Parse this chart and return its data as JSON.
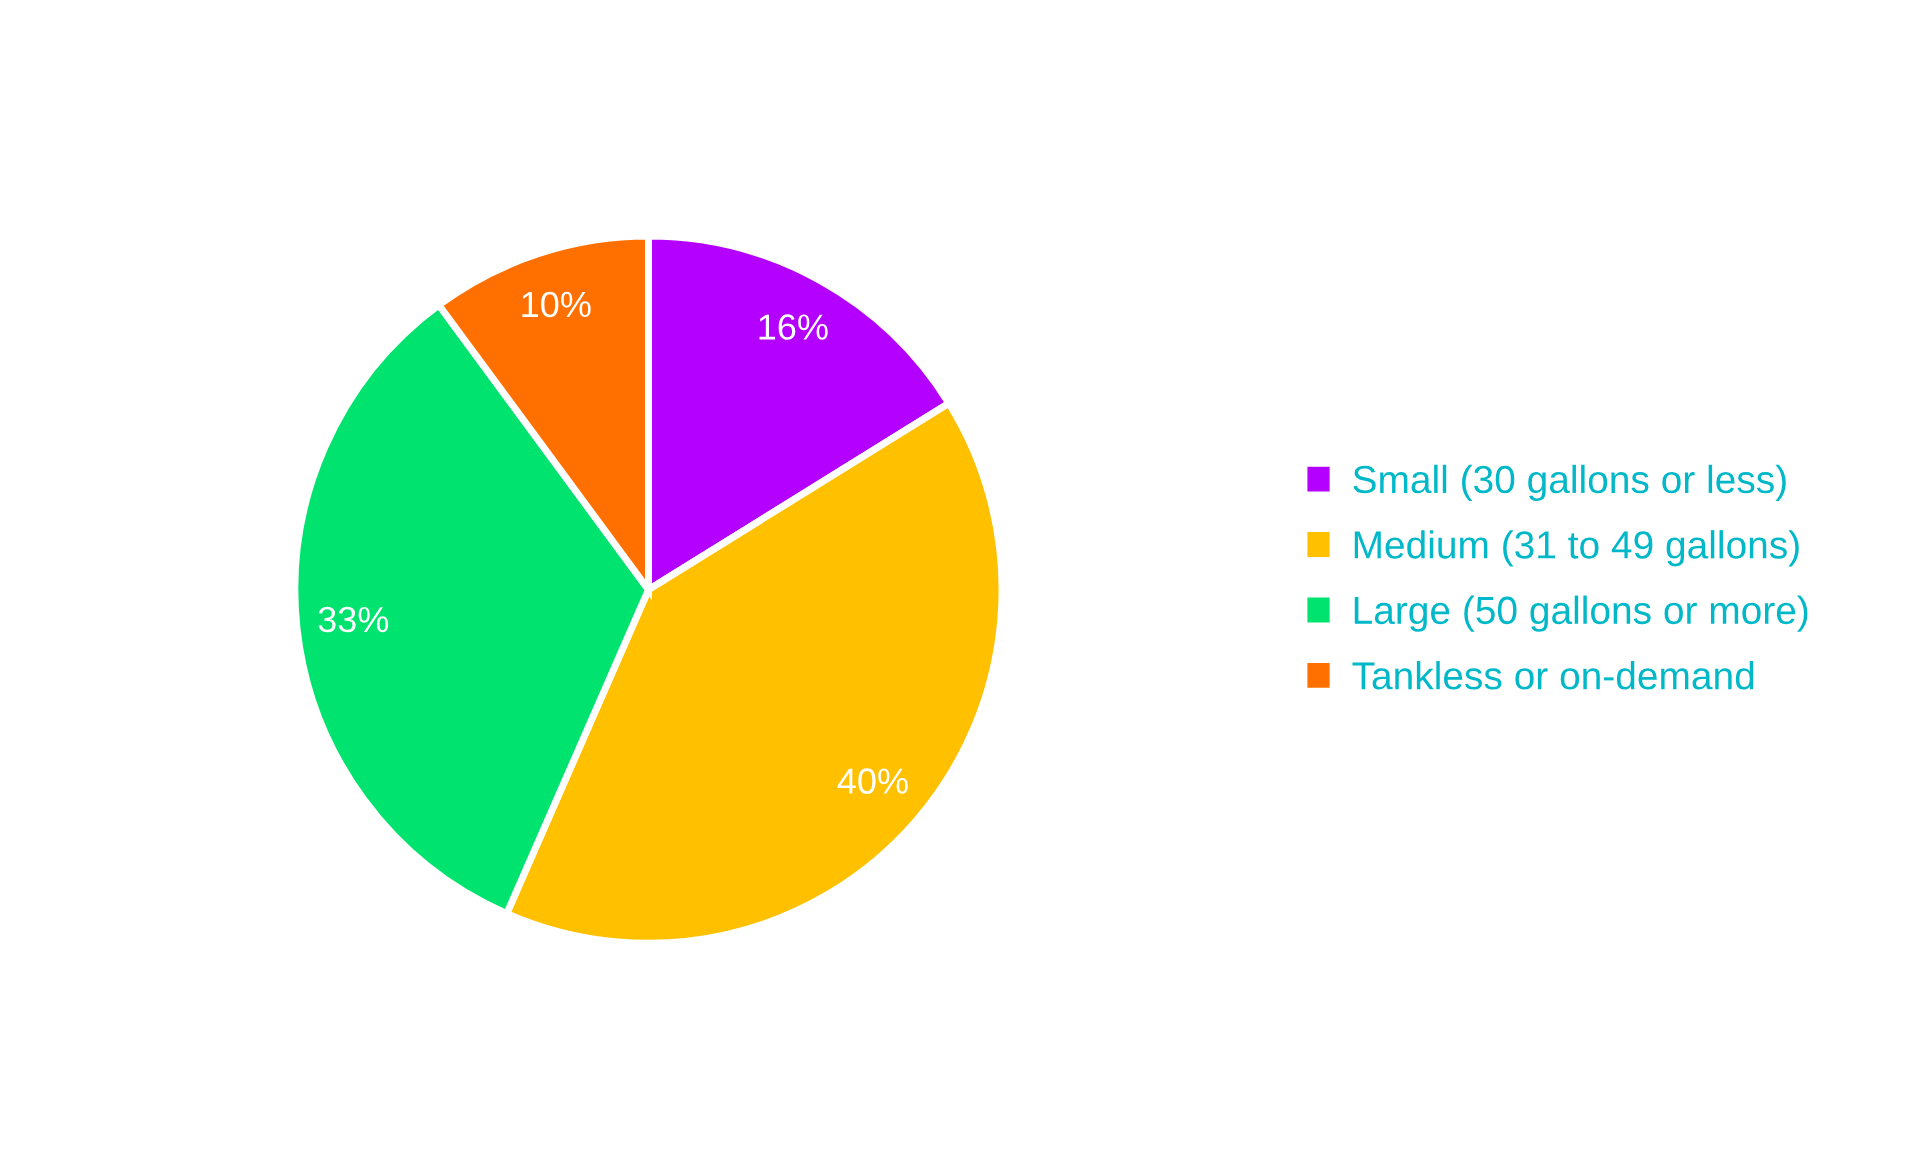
{
  "chart_data": {
    "type": "pie",
    "categories": [
      "Small (30 gallons or less)",
      "Medium (31 to 49 gallons)",
      "Large (50 gallons or more)",
      "Tankless or on-demand"
    ],
    "values": [
      16,
      40,
      33,
      10
    ],
    "colors": [
      "#b300ff",
      "#ffc000",
      "#00e36f",
      "#ff7000"
    ],
    "value_labels": [
      "16%",
      "40%",
      "33%",
      "10%"
    ],
    "legend": "right"
  }
}
